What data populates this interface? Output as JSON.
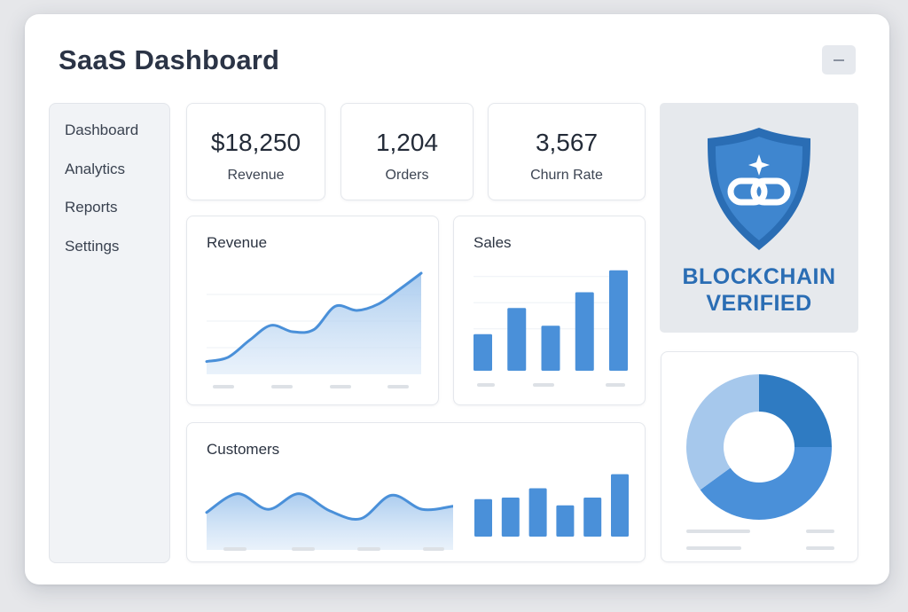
{
  "app": {
    "title": "SaaS Dashboard"
  },
  "window_controls": {
    "minimize_icon": "minimize-icon"
  },
  "sidebar": {
    "items": [
      {
        "label": "Dashboard"
      },
      {
        "label": "Analytics"
      },
      {
        "label": "Reports"
      },
      {
        "label": "Settings"
      }
    ]
  },
  "stats": [
    {
      "value": "$18,250",
      "label": "Revenue"
    },
    {
      "value": "1,204",
      "label": "Orders"
    },
    {
      "value": "3,567",
      "label": "Churn Rate"
    }
  ],
  "badge": {
    "icon": "shield-chain-link-icon",
    "line1": "BLOCKCHAIN",
    "line2": "VERIFIED",
    "color": "#2a6db4"
  },
  "colors": {
    "accent": "#4a90d9",
    "accent_light": "#a6c8ec",
    "accent_dark": "#2f7bc2",
    "placeholder": "#dde1e6"
  },
  "chart_data": [
    {
      "type": "area",
      "title": "Revenue",
      "x": [
        0,
        1,
        2,
        3,
        4,
        5,
        6,
        7,
        8,
        9,
        10
      ],
      "values": [
        12,
        16,
        32,
        46,
        40,
        42,
        64,
        60,
        66,
        80,
        95
      ],
      "ylim": [
        0,
        100
      ],
      "grid": true
    },
    {
      "type": "bar",
      "title": "Sales",
      "values": [
        35,
        60,
        43,
        75,
        96
      ],
      "ylim": [
        0,
        100
      ],
      "grid": true
    },
    {
      "type": "area",
      "title": "Customers",
      "x": [
        0,
        1,
        2,
        3,
        4,
        5,
        6,
        7,
        8
      ],
      "values": [
        48,
        72,
        52,
        72,
        50,
        40,
        70,
        52,
        56
      ],
      "ylim": [
        0,
        100
      ],
      "grid": false
    },
    {
      "type": "bar",
      "values": [
        48,
        50,
        62,
        40,
        50,
        80
      ],
      "ylim": [
        0,
        100
      ],
      "grid": false
    },
    {
      "type": "pie",
      "donut": true,
      "values": [
        25,
        40,
        35
      ],
      "colors": [
        "#2f7bc2",
        "#4a90d9",
        "#a6c8ec"
      ]
    }
  ]
}
